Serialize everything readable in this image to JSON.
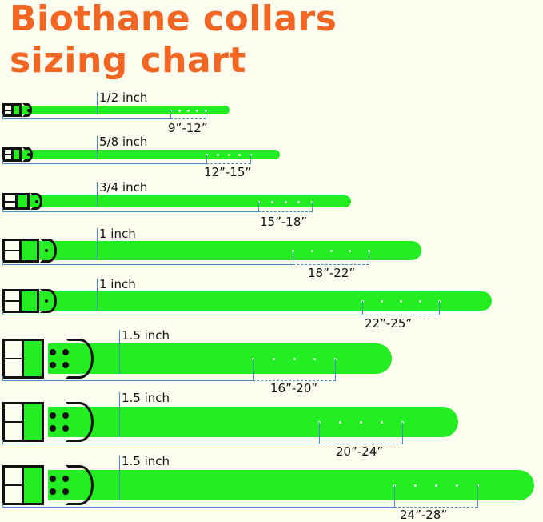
{
  "title": {
    "line1": "Biothane collars",
    "line2": "sizing chart"
  },
  "colors": {
    "title": "#f26522",
    "strap": "#22ee22",
    "hardware": "#111111",
    "measure_line": "#4a90c8",
    "background": "#fdfdf0"
  },
  "collars": [
    {
      "width_label": "1/2 inch",
      "size_range": "9”-12”"
    },
    {
      "width_label": "5/8 inch",
      "size_range": "12”-15”"
    },
    {
      "width_label": "3/4 inch",
      "size_range": "15”-18”"
    },
    {
      "width_label": "1 inch",
      "size_range": "18”-22”"
    },
    {
      "width_label": "1 inch",
      "size_range": "22”-25”"
    },
    {
      "width_label": "1.5 inch",
      "size_range": "16”-20”"
    },
    {
      "width_label": "1.5 inch",
      "size_range": "20”-24”"
    },
    {
      "width_label": "1.5 inch",
      "size_range": "24”-28”"
    }
  ]
}
